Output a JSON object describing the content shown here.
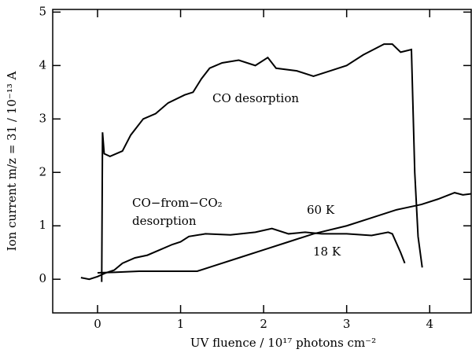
{
  "chart_data": {
    "type": "line",
    "xlabel": "UV fluence / 10¹⁷ photons cm⁻²",
    "ylabel": "Ion current m/z = 31 / 10⁻¹³ A",
    "xlim": [
      -0.54,
      4.5
    ],
    "xticks": [
      0,
      1,
      2,
      3,
      4
    ],
    "ylim": [
      -0.63,
      5.05
    ],
    "yticks": [
      0,
      1,
      2,
      3,
      4,
      5
    ],
    "series": [
      {
        "color": "#000000",
        "x": [
          0.05,
          0.06,
          0.08,
          0.15,
          0.3,
          0.4,
          0.55,
          0.7,
          0.85,
          1.05,
          1.15,
          1.25,
          1.35,
          1.5,
          1.7,
          1.9,
          2.05,
          2.15,
          2.4,
          2.6,
          2.8,
          3.0,
          3.2,
          3.45,
          3.55,
          3.65,
          3.78,
          3.82,
          3.86,
          3.91
        ],
        "values": [
          -0.05,
          2.75,
          2.35,
          2.3,
          2.4,
          2.7,
          3.0,
          3.1,
          3.3,
          3.45,
          3.5,
          3.75,
          3.95,
          4.05,
          4.1,
          4.0,
          4.15,
          3.95,
          3.9,
          3.8,
          3.9,
          4.0,
          4.2,
          4.4,
          4.4,
          4.25,
          4.3,
          2.0,
          0.8,
          0.22
        ]
      },
      {
        "color": "#000000",
        "x": [
          -0.2,
          -0.1,
          0.0,
          0.1,
          0.2,
          0.3,
          0.45,
          0.6,
          0.75,
          0.9,
          1.0,
          1.1,
          1.3,
          1.6,
          1.9,
          2.1,
          2.3,
          2.5,
          2.7,
          3.0,
          3.3,
          3.5,
          3.55,
          3.65,
          3.7
        ],
        "values": [
          0.03,
          0.0,
          0.05,
          0.12,
          0.17,
          0.3,
          0.4,
          0.45,
          0.55,
          0.65,
          0.7,
          0.8,
          0.85,
          0.83,
          0.88,
          0.95,
          0.85,
          0.88,
          0.85,
          0.85,
          0.82,
          0.88,
          0.85,
          0.5,
          0.3
        ]
      },
      {
        "color": "#000000",
        "x": [
          0.0,
          0.2,
          0.5,
          1.0,
          1.2,
          1.4,
          1.7,
          2.0,
          2.3,
          2.6,
          3.0,
          3.3,
          3.6,
          3.9,
          4.1,
          4.3,
          4.4,
          4.5
        ],
        "values": [
          0.12,
          0.13,
          0.15,
          0.15,
          0.15,
          0.25,
          0.4,
          0.55,
          0.7,
          0.85,
          1.0,
          1.15,
          1.3,
          1.4,
          1.5,
          1.62,
          1.58,
          1.6
        ]
      }
    ],
    "annotations": [
      "CO desorption",
      "CO−from−CO₂",
      "desorption",
      "60 K",
      "18 K"
    ]
  }
}
